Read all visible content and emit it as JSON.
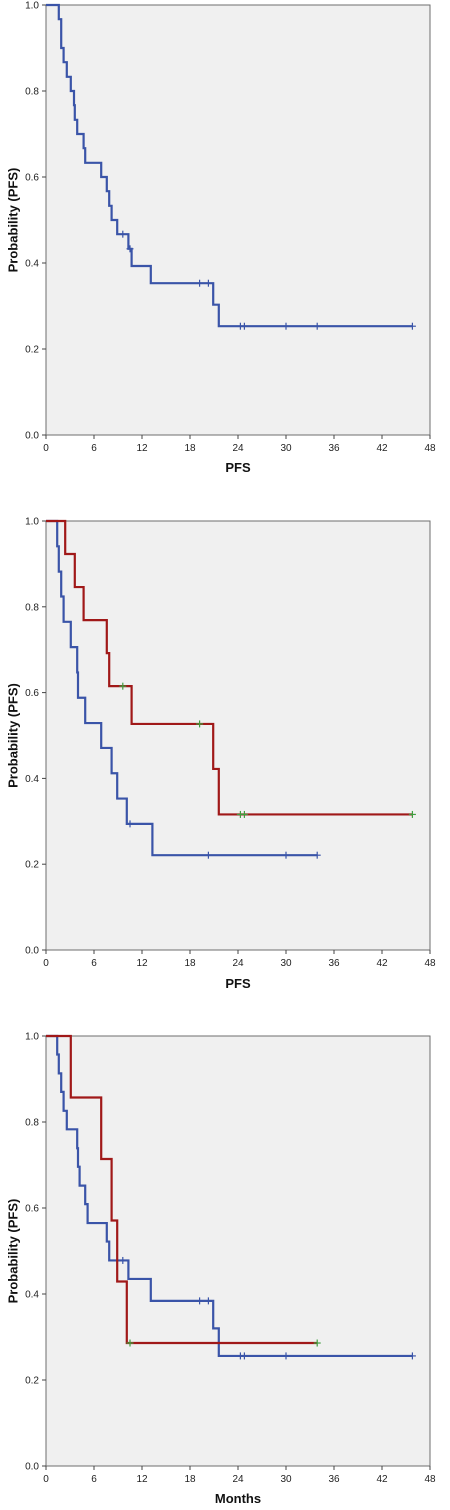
{
  "chart_data": [
    {
      "type": "line",
      "xlabel": "PFS",
      "ylabel": "Probability (PFS)",
      "xlim": [
        0,
        48
      ],
      "ylim": [
        0,
        1
      ],
      "x_ticks": [
        0,
        6,
        12,
        18,
        24,
        30,
        36,
        42,
        48
      ],
      "y_ticks": [
        0.0,
        0.2,
        0.4,
        0.6,
        0.8,
        1.0
      ],
      "grid": false,
      "plot_background": "#f0f0f0",
      "series": [
        {
          "color": "#3a54a8",
          "censor_color": "#3a54a8",
          "points": [
            [
              0,
              1.0
            ],
            [
              1.6,
              1.0
            ],
            [
              1.6,
              0.967
            ],
            [
              1.9,
              0.967
            ],
            [
              1.9,
              0.9
            ],
            [
              2.2,
              0.9
            ],
            [
              2.2,
              0.867
            ],
            [
              2.6,
              0.867
            ],
            [
              2.6,
              0.833
            ],
            [
              3.1,
              0.833
            ],
            [
              3.1,
              0.8
            ],
            [
              3.5,
              0.8
            ],
            [
              3.5,
              0.767
            ],
            [
              3.6,
              0.767
            ],
            [
              3.6,
              0.733
            ],
            [
              3.9,
              0.733
            ],
            [
              3.9,
              0.7
            ],
            [
              4.7,
              0.7
            ],
            [
              4.7,
              0.667
            ],
            [
              4.9,
              0.667
            ],
            [
              4.9,
              0.633
            ],
            [
              6.9,
              0.633
            ],
            [
              6.9,
              0.6
            ],
            [
              7.6,
              0.6
            ],
            [
              7.6,
              0.567
            ],
            [
              7.9,
              0.567
            ],
            [
              7.9,
              0.533
            ],
            [
              8.2,
              0.533
            ],
            [
              8.2,
              0.5
            ],
            [
              8.9,
              0.5
            ],
            [
              8.9,
              0.467
            ],
            [
              10.3,
              0.467
            ],
            [
              10.3,
              0.433
            ],
            [
              10.7,
              0.433
            ],
            [
              10.7,
              0.393
            ],
            [
              13.1,
              0.393
            ],
            [
              13.1,
              0.353
            ],
            [
              20.9,
              0.353
            ],
            [
              20.9,
              0.303
            ],
            [
              21.6,
              0.303
            ],
            [
              21.6,
              0.253
            ],
            [
              45.8,
              0.253
            ]
          ],
          "censored": [
            [
              9.6,
              0.467
            ],
            [
              10.5,
              0.433
            ],
            [
              19.2,
              0.353
            ],
            [
              20.3,
              0.353
            ],
            [
              24.3,
              0.253
            ],
            [
              24.8,
              0.253
            ],
            [
              30.0,
              0.253
            ],
            [
              33.9,
              0.253
            ],
            [
              45.8,
              0.253
            ]
          ]
        }
      ]
    },
    {
      "type": "line",
      "xlabel": "PFS",
      "ylabel": "Probability (PFS)",
      "xlim": [
        0,
        48
      ],
      "ylim": [
        0,
        1
      ],
      "x_ticks": [
        0,
        6,
        12,
        18,
        24,
        30,
        36,
        42,
        48
      ],
      "y_ticks": [
        0.0,
        0.2,
        0.4,
        0.6,
        0.8,
        1.0
      ],
      "grid": false,
      "plot_background": "#f0f0f0",
      "series": [
        {
          "color": "#3a54a8",
          "censor_color": "#3a54a8",
          "points": [
            [
              0,
              1.0
            ],
            [
              1.4,
              1.0
            ],
            [
              1.4,
              0.941
            ],
            [
              1.6,
              0.941
            ],
            [
              1.6,
              0.882
            ],
            [
              1.9,
              0.882
            ],
            [
              1.9,
              0.824
            ],
            [
              2.2,
              0.824
            ],
            [
              2.2,
              0.765
            ],
            [
              3.1,
              0.765
            ],
            [
              3.1,
              0.706
            ],
            [
              3.9,
              0.706
            ],
            [
              3.9,
              0.647
            ],
            [
              4.0,
              0.647
            ],
            [
              4.0,
              0.588
            ],
            [
              4.9,
              0.588
            ],
            [
              4.9,
              0.529
            ],
            [
              6.9,
              0.529
            ],
            [
              6.9,
              0.471
            ],
            [
              8.2,
              0.471
            ],
            [
              8.2,
              0.412
            ],
            [
              8.9,
              0.412
            ],
            [
              8.9,
              0.353
            ],
            [
              10.1,
              0.353
            ],
            [
              10.1,
              0.294
            ],
            [
              13.3,
              0.294
            ],
            [
              13.3,
              0.221
            ],
            [
              33.9,
              0.221
            ]
          ],
          "censored": [
            [
              10.5,
              0.294
            ],
            [
              20.3,
              0.221
            ],
            [
              30.0,
              0.221
            ],
            [
              33.9,
              0.221
            ]
          ]
        },
        {
          "color": "#a01818",
          "censor_color": "#3f9e3f",
          "points": [
            [
              0,
              1.0
            ],
            [
              2.4,
              1.0
            ],
            [
              2.4,
              0.923
            ],
            [
              3.6,
              0.923
            ],
            [
              3.6,
              0.846
            ],
            [
              4.7,
              0.846
            ],
            [
              4.7,
              0.769
            ],
            [
              7.6,
              0.769
            ],
            [
              7.6,
              0.692
            ],
            [
              7.9,
              0.692
            ],
            [
              7.9,
              0.615
            ],
            [
              10.7,
              0.615
            ],
            [
              10.7,
              0.527
            ],
            [
              20.9,
              0.527
            ],
            [
              20.9,
              0.422
            ],
            [
              21.6,
              0.422
            ],
            [
              21.6,
              0.316
            ],
            [
              45.8,
              0.316
            ]
          ],
          "censored": [
            [
              9.6,
              0.615
            ],
            [
              19.2,
              0.527
            ],
            [
              24.3,
              0.316
            ],
            [
              24.8,
              0.316
            ],
            [
              45.8,
              0.316
            ]
          ]
        }
      ]
    },
    {
      "type": "line",
      "xlabel": "Months",
      "ylabel": "Probability (PFS)",
      "xlim": [
        0,
        48
      ],
      "ylim": [
        0,
        1
      ],
      "x_ticks": [
        0,
        6,
        12,
        18,
        24,
        30,
        36,
        42,
        48
      ],
      "y_ticks": [
        0.0,
        0.2,
        0.4,
        0.6,
        0.8,
        1.0
      ],
      "grid": false,
      "plot_background": "#f0f0f0",
      "series": [
        {
          "color": "#3a54a8",
          "censor_color": "#3a54a8",
          "points": [
            [
              0,
              1.0
            ],
            [
              1.4,
              1.0
            ],
            [
              1.4,
              0.957
            ],
            [
              1.6,
              0.957
            ],
            [
              1.6,
              0.913
            ],
            [
              1.9,
              0.913
            ],
            [
              1.9,
              0.87
            ],
            [
              2.2,
              0.87
            ],
            [
              2.2,
              0.826
            ],
            [
              2.6,
              0.826
            ],
            [
              2.6,
              0.783
            ],
            [
              3.9,
              0.783
            ],
            [
              3.9,
              0.739
            ],
            [
              4.0,
              0.739
            ],
            [
              4.0,
              0.696
            ],
            [
              4.2,
              0.696
            ],
            [
              4.2,
              0.652
            ],
            [
              4.9,
              0.652
            ],
            [
              4.9,
              0.609
            ],
            [
              5.2,
              0.609
            ],
            [
              5.2,
              0.565
            ],
            [
              7.6,
              0.565
            ],
            [
              7.6,
              0.522
            ],
            [
              7.9,
              0.522
            ],
            [
              7.9,
              0.478
            ],
            [
              10.3,
              0.478
            ],
            [
              10.3,
              0.435
            ],
            [
              13.1,
              0.435
            ],
            [
              13.1,
              0.384
            ],
            [
              20.9,
              0.384
            ],
            [
              20.9,
              0.32
            ],
            [
              21.6,
              0.32
            ],
            [
              21.6,
              0.256
            ],
            [
              45.8,
              0.256
            ]
          ],
          "censored": [
            [
              9.6,
              0.478
            ],
            [
              19.2,
              0.384
            ],
            [
              20.3,
              0.384
            ],
            [
              24.3,
              0.256
            ],
            [
              24.8,
              0.256
            ],
            [
              30.0,
              0.256
            ],
            [
              45.8,
              0.256
            ]
          ]
        },
        {
          "color": "#a01818",
          "censor_color": "#3f9e3f",
          "points": [
            [
              0,
              1.0
            ],
            [
              3.1,
              1.0
            ],
            [
              3.1,
              0.857
            ],
            [
              6.9,
              0.857
            ],
            [
              6.9,
              0.714
            ],
            [
              8.2,
              0.714
            ],
            [
              8.2,
              0.571
            ],
            [
              8.9,
              0.571
            ],
            [
              8.9,
              0.429
            ],
            [
              10.1,
              0.429
            ],
            [
              10.1,
              0.286
            ],
            [
              33.9,
              0.286
            ]
          ],
          "censored": [
            [
              10.5,
              0.286
            ],
            [
              33.9,
              0.286
            ]
          ]
        }
      ]
    }
  ]
}
